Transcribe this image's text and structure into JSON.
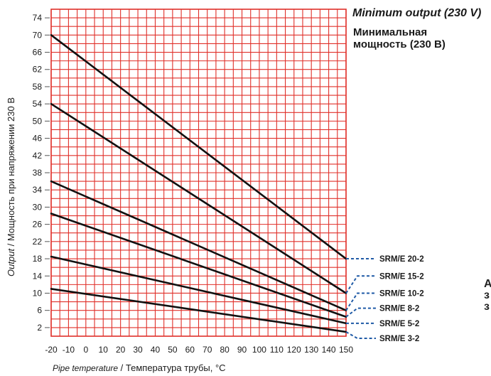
{
  "legend": {
    "title": "Minimum output (230 V)",
    "subtitle_line1": "Минимальная",
    "subtitle_line2": "мощность (230 В)"
  },
  "edge_text": [
    "А",
    "з",
    "з"
  ],
  "colors": {
    "grid": "#e0302a",
    "series": "#111111",
    "leader": "#1f5aa6",
    "text": "#1a1a1a"
  },
  "chart_data": {
    "type": "line",
    "ylabel_italic": "Output",
    "ylabel_sep": " / ",
    "ylabel_ru": "Мощность при напряжении 230 В",
    "xlabel_italic": "Pipe temperature",
    "xlabel_sep": " / ",
    "xlabel_ru": "Температура трубы, °C",
    "xlim": [
      -20,
      150
    ],
    "ylim": [
      0,
      76
    ],
    "x_ticks": [
      -20,
      -10,
      0,
      10,
      20,
      30,
      40,
      50,
      60,
      70,
      80,
      90,
      100,
      110,
      120,
      130,
      140,
      150
    ],
    "y_ticks": [
      2,
      6,
      10,
      14,
      18,
      22,
      26,
      30,
      34,
      38,
      42,
      46,
      50,
      54,
      58,
      62,
      66,
      70,
      74
    ],
    "grid": true,
    "series": [
      {
        "name": "SRM/E 20-2",
        "x": [
          -20,
          150
        ],
        "y": [
          70,
          18
        ],
        "label_y": 18
      },
      {
        "name": "SRM/E 15-2",
        "x": [
          -20,
          150
        ],
        "y": [
          54,
          10
        ],
        "label_y": 14
      },
      {
        "name": "SRM/E 10-2",
        "x": [
          -20,
          150
        ],
        "y": [
          36,
          6
        ],
        "label_y": 10
      },
      {
        "name": "SRM/E  8-2",
        "x": [
          -20,
          150
        ],
        "y": [
          28.5,
          4.5
        ],
        "label_y": 6.5
      },
      {
        "name": "SRM/E  5-2",
        "x": [
          -20,
          150
        ],
        "y": [
          18.5,
          3
        ],
        "label_y": 3
      },
      {
        "name": "SRM/E  3-2",
        "x": [
          -20,
          150
        ],
        "y": [
          11,
          1
        ],
        "label_y": -0.5
      }
    ]
  }
}
